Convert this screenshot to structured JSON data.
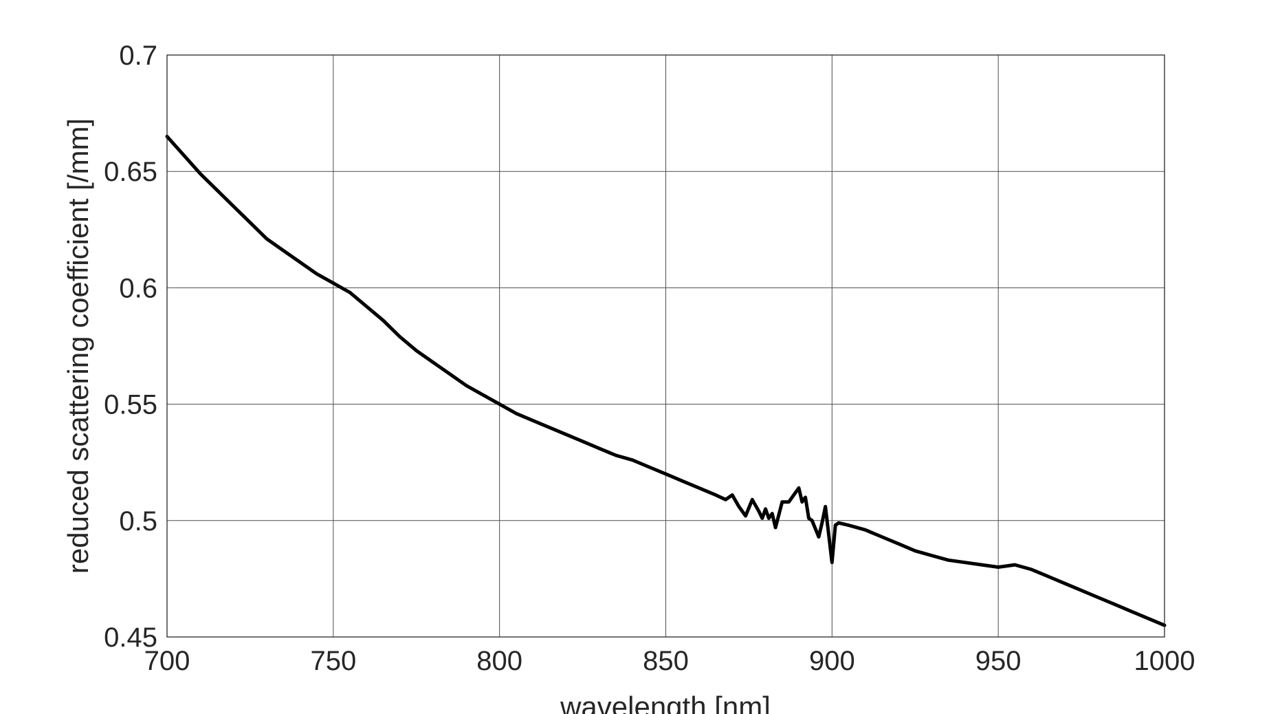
{
  "chart_data": {
    "type": "line",
    "xlabel": "wavelength [nm]",
    "ylabel": "reduced scattering coefficient [/mm]",
    "xlim": [
      700,
      1000
    ],
    "ylim": [
      0.45,
      0.7
    ],
    "xticks": [
      "700",
      "750",
      "800",
      "850",
      "900",
      "950",
      "1000"
    ],
    "yticks": [
      "0.45",
      "0.5",
      "0.55",
      "0.6",
      "0.65",
      "0.7"
    ],
    "grid": true,
    "series_color": "#000000",
    "series": [
      {
        "x": [
          700,
          705,
          710,
          715,
          720,
          725,
          730,
          735,
          740,
          745,
          750,
          755,
          760,
          765,
          770,
          775,
          780,
          785,
          790,
          795,
          800,
          805,
          810,
          815,
          820,
          825,
          830,
          835,
          840,
          845,
          850,
          855,
          860,
          865,
          868,
          870,
          872,
          874,
          876,
          878,
          879,
          880,
          881,
          882,
          883,
          885,
          887,
          889,
          890,
          891,
          892,
          893,
          894,
          896,
          897,
          898,
          899,
          900,
          901,
          902,
          905,
          910,
          915,
          920,
          925,
          930,
          935,
          940,
          945,
          950,
          955,
          960,
          965,
          970,
          975,
          980,
          985,
          990,
          995,
          1000
        ],
        "values": [
          0.665,
          0.657,
          0.649,
          0.642,
          0.635,
          0.628,
          0.621,
          0.616,
          0.611,
          0.606,
          0.602,
          0.598,
          0.592,
          0.586,
          0.579,
          0.573,
          0.568,
          0.563,
          0.558,
          0.554,
          0.55,
          0.546,
          0.543,
          0.54,
          0.537,
          0.534,
          0.531,
          0.528,
          0.526,
          0.523,
          0.52,
          0.517,
          0.514,
          0.511,
          0.509,
          0.511,
          0.506,
          0.502,
          0.509,
          0.504,
          0.501,
          0.505,
          0.501,
          0.503,
          0.497,
          0.508,
          0.508,
          0.512,
          0.514,
          0.508,
          0.51,
          0.501,
          0.5,
          0.493,
          0.499,
          0.506,
          0.494,
          0.482,
          0.498,
          0.499,
          0.498,
          0.496,
          0.493,
          0.49,
          0.487,
          0.485,
          0.483,
          0.482,
          0.481,
          0.48,
          0.481,
          0.479,
          0.476,
          0.473,
          0.47,
          0.467,
          0.464,
          0.461,
          0.458,
          0.455
        ]
      }
    ]
  }
}
